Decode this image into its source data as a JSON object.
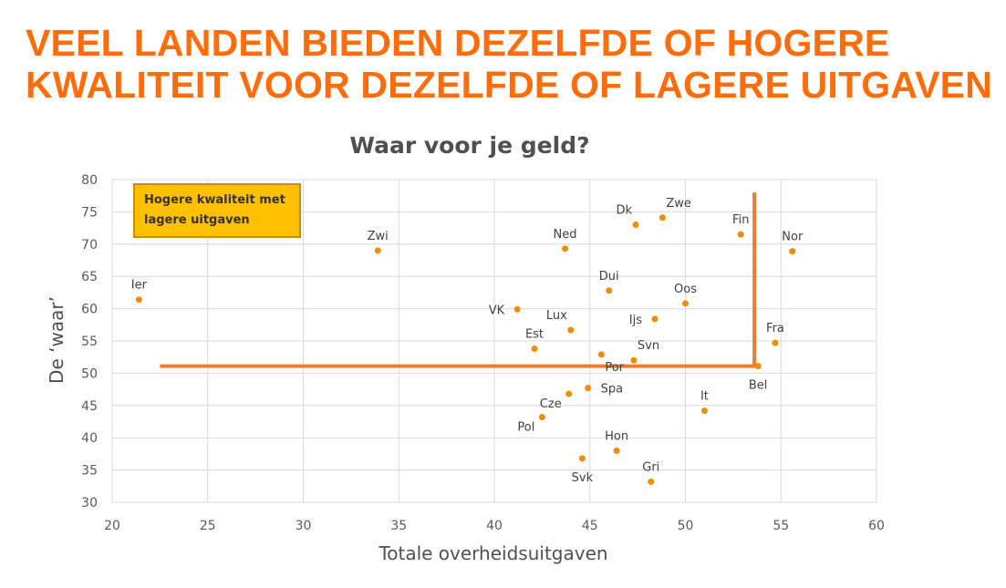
{
  "headline": {
    "line1": "VEEL LANDEN BIEDEN DEZELFDE OF HOGERE",
    "line2": "KWALITEIT VOOR DEZELFDE OF LAGERE UITGAVEN"
  },
  "callout": {
    "line1": "Hogere kwaliteit met",
    "line2": "lagere uitgaven"
  },
  "colors": {
    "headline": "#ff6d0a",
    "point": "#f28c00",
    "threshold_line": "#ed7d31",
    "callout_fill": "#ffc000",
    "callout_border": "#d08b00",
    "grid": "#d9d9d9"
  },
  "chart_data": {
    "type": "scatter",
    "title": "Waar voor je geld?",
    "xlabel": "Totale overheidsuitgaven",
    "ylabel": "De ‘waar’",
    "xlim": [
      20,
      60
    ],
    "ylim": [
      30,
      80
    ],
    "xticks": [
      "20",
      "25",
      "30",
      "35",
      "40",
      "45",
      "50",
      "55",
      "60"
    ],
    "yticks": [
      "30",
      "35",
      "40",
      "45",
      "50",
      "55",
      "60",
      "65",
      "70",
      "75",
      "80"
    ],
    "grid": true,
    "threshold": {
      "x": 53.8,
      "y": 51.1,
      "x_start": 22.5,
      "y_top": 78
    },
    "points": [
      {
        "label": "Ier",
        "x": 21.4,
        "y": 61.4,
        "pos": "above"
      },
      {
        "label": "Zwi",
        "x": 33.9,
        "y": 69.0,
        "pos": "above"
      },
      {
        "label": "Ned",
        "x": 43.7,
        "y": 69.3,
        "pos": "above"
      },
      {
        "label": "Dk",
        "x": 47.4,
        "y": 73.0,
        "pos": "above-left"
      },
      {
        "label": "Zwe",
        "x": 48.8,
        "y": 74.1,
        "pos": "above-right"
      },
      {
        "label": "Fin",
        "x": 52.9,
        "y": 71.5,
        "pos": "above"
      },
      {
        "label": "Nor",
        "x": 55.6,
        "y": 68.9,
        "pos": "above"
      },
      {
        "label": "Dui",
        "x": 46.0,
        "y": 62.8,
        "pos": "above"
      },
      {
        "label": "Oos",
        "x": 50.0,
        "y": 60.8,
        "pos": "above"
      },
      {
        "label": "VK",
        "x": 41.2,
        "y": 59.9,
        "pos": "left"
      },
      {
        "label": "Ijs",
        "x": 48.4,
        "y": 58.4,
        "pos": "left"
      },
      {
        "label": "Lux",
        "x": 44.0,
        "y": 56.7,
        "pos": "above-left"
      },
      {
        "label": "Est",
        "x": 42.1,
        "y": 53.8,
        "pos": "above"
      },
      {
        "label": "Fra",
        "x": 54.7,
        "y": 54.7,
        "pos": "above"
      },
      {
        "label": "Svn",
        "x": 47.3,
        "y": 52.0,
        "pos": "above-right"
      },
      {
        "label": "Por",
        "x": 45.6,
        "y": 52.9,
        "pos": "below-right"
      },
      {
        "label": "Bel",
        "x": 53.8,
        "y": 51.1,
        "pos": "below"
      },
      {
        "label": "Spa",
        "x": 44.9,
        "y": 47.7,
        "pos": "right"
      },
      {
        "label": "Cze",
        "x": 43.9,
        "y": 46.8,
        "pos": "below-left"
      },
      {
        "label": "It",
        "x": 51.0,
        "y": 44.2,
        "pos": "above"
      },
      {
        "label": "Pol",
        "x": 42.5,
        "y": 43.2,
        "pos": "below-left"
      },
      {
        "label": "Hon",
        "x": 46.4,
        "y": 38.0,
        "pos": "above"
      },
      {
        "label": "Svk",
        "x": 44.6,
        "y": 36.8,
        "pos": "below"
      },
      {
        "label": "Gri",
        "x": 48.2,
        "y": 33.2,
        "pos": "above"
      }
    ]
  }
}
